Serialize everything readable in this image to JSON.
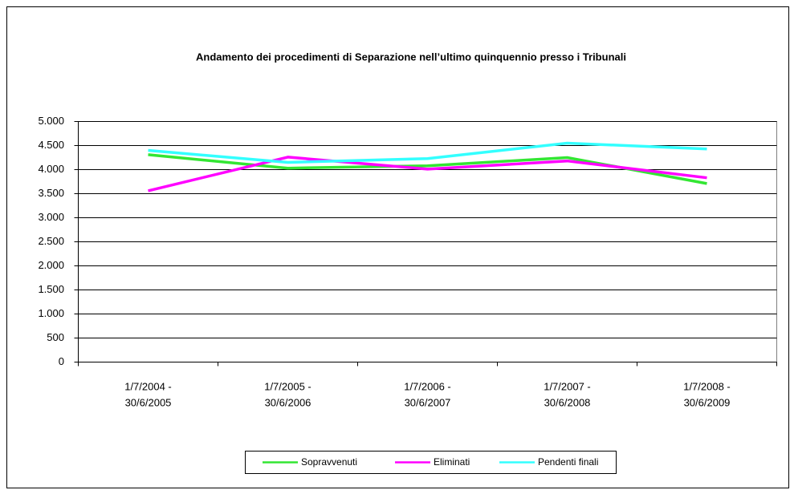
{
  "chart_data": {
    "type": "line",
    "title": "Andamento dei procedimenti di Separazione nell’ultimo quinquennio presso i Tribunali",
    "categories": [
      [
        "1/7/2004 -",
        "30/6/2005"
      ],
      [
        "1/7/2005 -",
        "30/6/2006"
      ],
      [
        "1/7/2006 -",
        "30/6/2007"
      ],
      [
        "1/7/2007 -",
        "30/6/2008"
      ],
      [
        "1/7/2008 -",
        "30/6/2009"
      ]
    ],
    "series": [
      {
        "name": "Sopravvenuti",
        "color": "#33e633",
        "values": [
          4310,
          4030,
          4080,
          4250,
          3710
        ]
      },
      {
        "name": "Eliminati",
        "color": "#ff00ff",
        "values": [
          3560,
          4260,
          4010,
          4180,
          3830
        ]
      },
      {
        "name": "Pendenti finali",
        "color": "#33ffff",
        "values": [
          4400,
          4150,
          4230,
          4550,
          4430
        ]
      }
    ],
    "ylim": [
      0,
      5000
    ],
    "yticks": [
      0,
      500,
      {
        "value": 1000,
        "label": "1.000"
      },
      {
        "value": 1500,
        "label": "1.500"
      },
      {
        "value": 2000,
        "label": "2.000"
      },
      {
        "value": 2500,
        "label": "2.500"
      },
      {
        "value": 3000,
        "label": "3.000"
      },
      {
        "value": 3500,
        "label": "3.500"
      },
      {
        "value": 4000,
        "label": "4.000"
      },
      {
        "value": 4500,
        "label": "4.500"
      },
      {
        "value": 5000,
        "label": "5.000"
      }
    ],
    "grid": true,
    "legend": "bottom"
  }
}
